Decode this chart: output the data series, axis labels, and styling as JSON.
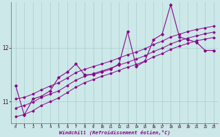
{
  "xlabel": "Windchill (Refroidissement éolien,°C)",
  "ylabel": "",
  "background_color": "#cce8e8",
  "grid_color": "#aacccc",
  "line_color": "#880088",
  "xlim": [
    -0.5,
    23.5
  ],
  "ylim": [
    10.6,
    12.85
  ],
  "yticks": [
    11,
    12
  ],
  "xticks": [
    0,
    1,
    2,
    3,
    4,
    5,
    6,
    7,
    8,
    9,
    10,
    11,
    12,
    13,
    14,
    15,
    16,
    17,
    18,
    19,
    20,
    21,
    22,
    23
  ],
  "main_y": [
    11.3,
    10.75,
    11.05,
    11.1,
    11.2,
    11.45,
    11.55,
    11.7,
    11.5,
    11.5,
    11.55,
    11.6,
    11.7,
    12.3,
    11.65,
    11.75,
    12.15,
    12.25,
    12.8,
    12.2,
    12.15,
    12.1,
    11.95,
    11.95
  ],
  "line2_y": [
    10.72,
    10.76,
    10.83,
    10.93,
    11.0,
    11.07,
    11.17,
    11.27,
    11.35,
    11.41,
    11.47,
    11.52,
    11.58,
    11.64,
    11.69,
    11.75,
    11.83,
    11.89,
    11.97,
    12.03,
    12.08,
    12.13,
    12.16,
    12.19
  ],
  "line3_y": [
    10.88,
    10.93,
    10.99,
    11.08,
    11.14,
    11.2,
    11.3,
    11.4,
    11.47,
    11.52,
    11.57,
    11.62,
    11.68,
    11.73,
    11.79,
    11.85,
    11.93,
    11.99,
    12.07,
    12.13,
    12.18,
    12.22,
    12.26,
    12.29
  ],
  "line4_y": [
    11.05,
    11.08,
    11.14,
    11.22,
    11.29,
    11.35,
    11.44,
    11.54,
    11.6,
    11.65,
    11.7,
    11.75,
    11.81,
    11.87,
    11.92,
    11.98,
    12.06,
    12.12,
    12.2,
    12.25,
    12.3,
    12.34,
    12.37,
    12.4
  ]
}
